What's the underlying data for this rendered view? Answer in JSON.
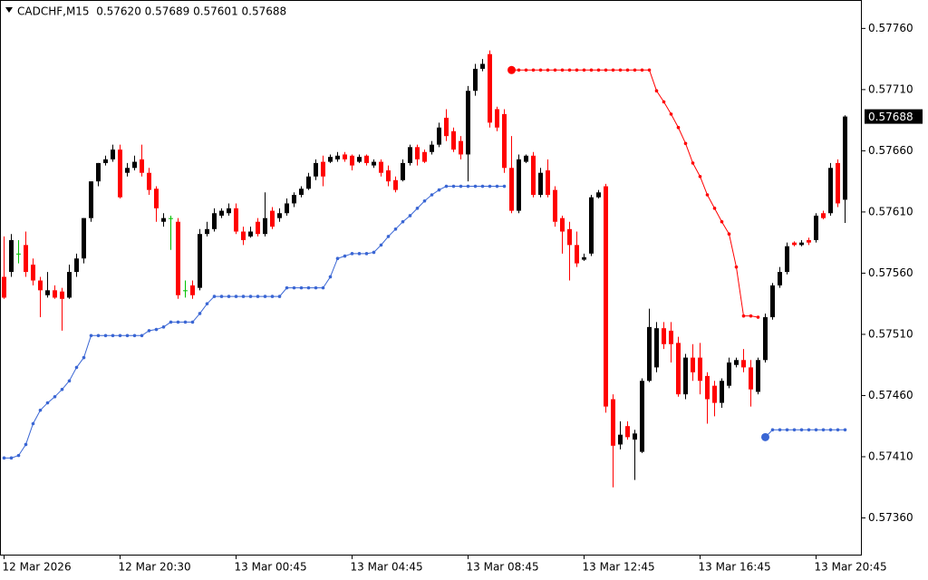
{
  "chart_data": {
    "type": "candlestick",
    "title": "CADCHF,M15  0.57620 0.57689 0.57601 0.57688",
    "categories": [
      "12 Mar 2026",
      null,
      null,
      null,
      null,
      null,
      null,
      null,
      null,
      null,
      null,
      null,
      null,
      null,
      null,
      null,
      "12 Mar 20:30",
      null,
      null,
      null,
      null,
      null,
      null,
      null,
      null,
      null,
      null,
      null,
      null,
      null,
      null,
      null,
      "13 Mar 00:45",
      null,
      null,
      null,
      null,
      null,
      null,
      null,
      null,
      null,
      null,
      null,
      null,
      null,
      null,
      null,
      "13 Mar 04:45",
      null,
      null,
      null,
      null,
      null,
      null,
      null,
      null,
      null,
      null,
      null,
      null,
      null,
      null,
      null,
      "13 Mar 08:45",
      null,
      null,
      null,
      null,
      null,
      null,
      null,
      null,
      null,
      null,
      null,
      null,
      null,
      null,
      null,
      "13 Mar 12:45",
      null,
      null,
      null,
      null,
      null,
      null,
      null,
      null,
      null,
      null,
      null,
      null,
      null,
      null,
      null,
      "13 Mar 16:45",
      null,
      null,
      null,
      null,
      null,
      null,
      null,
      null,
      null,
      null,
      null,
      null,
      null,
      null,
      null,
      "13 Mar 20:45",
      null,
      null,
      null,
      null
    ],
    "ohlc": [
      [
        0.57557,
        0.5759,
        0.57539,
        0.5754
      ],
      [
        0.57561,
        0.57592,
        0.57557,
        0.57587
      ],
      [
        0.57576,
        0.57587,
        0.57568,
        0.57576
      ],
      [
        0.57583,
        0.57594,
        0.57557,
        0.57561
      ],
      [
        0.57567,
        0.57572,
        0.5755,
        0.57554
      ],
      [
        0.57554,
        0.57557,
        0.57524,
        0.57546
      ],
      [
        0.57542,
        0.57561,
        0.5754,
        0.57546
      ],
      [
        0.57546,
        0.5755,
        0.57539,
        0.5754
      ],
      [
        0.57545,
        0.57548,
        0.57513,
        0.57539
      ],
      [
        0.5754,
        0.57567,
        0.57539,
        0.57561
      ],
      [
        0.57561,
        0.57576,
        0.57557,
        0.57572
      ],
      [
        0.57572,
        0.57605,
        0.57568,
        0.57605
      ],
      [
        0.57605,
        0.57635,
        0.57602,
        0.57635
      ],
      [
        0.57635,
        0.5765,
        0.57631,
        0.5765
      ],
      [
        0.5765,
        0.57656,
        0.57648,
        0.57653
      ],
      [
        0.57653,
        0.57665,
        0.57651,
        0.57661
      ],
      [
        0.57661,
        0.57665,
        0.57621,
        0.57622
      ],
      [
        0.57642,
        0.5765,
        0.57639,
        0.57646
      ],
      [
        0.57646,
        0.57656,
        0.57644,
        0.57651
      ],
      [
        0.57653,
        0.57665,
        0.57639,
        0.57642
      ],
      [
        0.57642,
        0.57646,
        0.57624,
        0.57628
      ],
      [
        0.57629,
        0.57631,
        0.57602,
        0.57613
      ],
      [
        0.57602,
        0.57609,
        0.57598,
        0.57605
      ],
      [
        0.57605,
        0.57607,
        0.57579,
        0.57605
      ],
      [
        0.57602,
        0.57605,
        0.57539,
        0.57542
      ],
      [
        0.57546,
        0.57554,
        0.5754,
        0.57546
      ],
      [
        0.5755,
        0.57554,
        0.57539,
        0.57542
      ],
      [
        0.57548,
        0.57596,
        0.57546,
        0.57592
      ],
      [
        0.57592,
        0.57602,
        0.5759,
        0.57596
      ],
      [
        0.57596,
        0.57613,
        0.57594,
        0.57609
      ],
      [
        0.57607,
        0.57613,
        0.57605,
        0.57611
      ],
      [
        0.57609,
        0.57617,
        0.57607,
        0.57613
      ],
      [
        0.57613,
        0.57617,
        0.57592,
        0.57594
      ],
      [
        0.57594,
        0.57598,
        0.57583,
        0.57587
      ],
      [
        0.5759,
        0.57598,
        0.57589,
        0.57594
      ],
      [
        0.57602,
        0.57605,
        0.5759,
        0.57592
      ],
      [
        0.57592,
        0.57626,
        0.5759,
        0.57605
      ],
      [
        0.57611,
        0.57614,
        0.57596,
        0.57598
      ],
      [
        0.57605,
        0.57613,
        0.57602,
        0.57609
      ],
      [
        0.57609,
        0.57621,
        0.57607,
        0.57617
      ],
      [
        0.57617,
        0.57626,
        0.57614,
        0.57624
      ],
      [
        0.57624,
        0.57631,
        0.57622,
        0.57629
      ],
      [
        0.57629,
        0.57642,
        0.57628,
        0.57639
      ],
      [
        0.57639,
        0.57653,
        0.57636,
        0.5765
      ],
      [
        0.57651,
        0.57656,
        0.57631,
        0.57639
      ],
      [
        0.57651,
        0.57657,
        0.5765,
        0.57655
      ],
      [
        0.57653,
        0.57659,
        0.57651,
        0.57656
      ],
      [
        0.57657,
        0.57659,
        0.57651,
        0.57653
      ],
      [
        0.57656,
        0.57657,
        0.57644,
        0.57648
      ],
      [
        0.57651,
        0.57657,
        0.5765,
        0.57655
      ],
      [
        0.57656,
        0.57657,
        0.57648,
        0.5765
      ],
      [
        0.57648,
        0.57653,
        0.57646,
        0.57651
      ],
      [
        0.57651,
        0.57653,
        0.57639,
        0.57642
      ],
      [
        0.57644,
        0.57648,
        0.57631,
        0.57635
      ],
      [
        0.57636,
        0.57639,
        0.57626,
        0.57628
      ],
      [
        0.57636,
        0.57653,
        0.57635,
        0.5765
      ],
      [
        0.5765,
        0.57665,
        0.57648,
        0.57663
      ],
      [
        0.57663,
        0.57665,
        0.57648,
        0.57653
      ],
      [
        0.57659,
        0.57661,
        0.5765,
        0.57651
      ],
      [
        0.57659,
        0.57668,
        0.57657,
        0.57665
      ],
      [
        0.57665,
        0.57683,
        0.57663,
        0.57679
      ],
      [
        0.57687,
        0.57694,
        0.57668,
        0.57672
      ],
      [
        0.57676,
        0.57679,
        0.57659,
        0.57661
      ],
      [
        0.57668,
        0.57672,
        0.57653,
        0.57657
      ],
      [
        0.57657,
        0.57713,
        0.57635,
        0.57709
      ],
      [
        0.57709,
        0.57731,
        0.57705,
        0.57727
      ],
      [
        0.57727,
        0.57735,
        0.57725,
        0.57731
      ],
      [
        0.57739,
        0.57742,
        0.57679,
        0.57683
      ],
      [
        0.57694,
        0.57696,
        0.57676,
        0.57679
      ],
      [
        0.5769,
        0.57694,
        0.57642,
        0.57646
      ],
      [
        0.57646,
        0.57672,
        0.57609,
        0.57611
      ],
      [
        0.57611,
        0.57657,
        0.57609,
        0.57653
      ],
      [
        0.57651,
        0.57657,
        0.5765,
        0.57656
      ],
      [
        0.57656,
        0.57659,
        0.57622,
        0.57624
      ],
      [
        0.57624,
        0.57646,
        0.57622,
        0.57642
      ],
      [
        0.57644,
        0.57653,
        0.57622,
        0.57624
      ],
      [
        0.57628,
        0.57631,
        0.57598,
        0.57602
      ],
      [
        0.57605,
        0.57607,
        0.57576,
        0.57594
      ],
      [
        0.57596,
        0.57602,
        0.57554,
        0.57583
      ],
      [
        0.57583,
        0.57594,
        0.57565,
        0.57568
      ],
      [
        0.57571,
        0.57576,
        0.5757,
        0.57573
      ],
      [
        0.57576,
        0.57624,
        0.57574,
        0.57622
      ],
      [
        0.57622,
        0.57628,
        0.57621,
        0.57626
      ],
      [
        0.57631,
        0.57633,
        0.57446,
        0.57451
      ],
      [
        0.57457,
        0.57461,
        0.57385,
        0.57419
      ],
      [
        0.5742,
        0.57439,
        0.57416,
        0.57428
      ],
      [
        0.57435,
        0.57439,
        0.57424,
        0.57426
      ],
      [
        0.57424,
        0.57432,
        0.57391,
        0.57429
      ],
      [
        0.57414,
        0.57474,
        0.57413,
        0.57472
      ],
      [
        0.57472,
        0.57531,
        0.57471,
        0.57516
      ],
      [
        0.57483,
        0.5752,
        0.57479,
        0.57515
      ],
      [
        0.57515,
        0.5752,
        0.57498,
        0.57502
      ],
      [
        0.57513,
        0.5752,
        0.57487,
        0.57502
      ],
      [
        0.57503,
        0.57508,
        0.57459,
        0.57461
      ],
      [
        0.57461,
        0.57494,
        0.57457,
        0.57491
      ],
      [
        0.57491,
        0.57502,
        0.57472,
        0.57479
      ],
      [
        0.57491,
        0.57503,
        0.57461,
        0.57472
      ],
      [
        0.57476,
        0.57479,
        0.57437,
        0.57457
      ],
      [
        0.57468,
        0.57472,
        0.57443,
        0.57454
      ],
      [
        0.57454,
        0.57474,
        0.5745,
        0.57472
      ],
      [
        0.57468,
        0.57491,
        0.57466,
        0.57487
      ],
      [
        0.57485,
        0.57491,
        0.57483,
        0.57489
      ],
      [
        0.57489,
        0.57498,
        0.57479,
        0.57483
      ],
      [
        0.57483,
        0.57489,
        0.57451,
        0.57465
      ],
      [
        0.57463,
        0.57491,
        0.57461,
        0.57489
      ],
      [
        0.57489,
        0.57527,
        0.57487,
        0.57524
      ],
      [
        0.57524,
        0.57552,
        0.57522,
        0.5755
      ],
      [
        0.5755,
        0.57565,
        0.57548,
        0.57561
      ],
      [
        0.57561,
        0.57585,
        0.57559,
        0.57582
      ],
      [
        0.57585,
        0.57586,
        0.57582,
        0.57583
      ],
      [
        0.57583,
        0.57587,
        0.57582,
        0.57585
      ],
      [
        0.57587,
        0.57589,
        0.57583,
        0.57585
      ],
      [
        0.57587,
        0.57609,
        0.57585,
        0.57607
      ],
      [
        0.57609,
        0.57611,
        0.57604,
        0.57605
      ],
      [
        0.57609,
        0.5765,
        0.57607,
        0.57646
      ],
      [
        0.5765,
        0.57653,
        0.57614,
        0.57617
      ],
      [
        0.5762,
        0.57689,
        0.57601,
        0.57688
      ]
    ],
    "up_color": "#000000",
    "down_color": "#ff0000",
    "doji_color": "#00c000",
    "series": [
      {
        "color": "#ff0000",
        "values": [
          null,
          null,
          null,
          null,
          null,
          null,
          null,
          null,
          null,
          null,
          null,
          null,
          null,
          null,
          null,
          null,
          null,
          null,
          null,
          null,
          null,
          null,
          null,
          null,
          null,
          null,
          null,
          null,
          null,
          null,
          null,
          null,
          null,
          null,
          null,
          null,
          null,
          null,
          null,
          null,
          null,
          null,
          null,
          null,
          null,
          null,
          null,
          null,
          null,
          null,
          null,
          null,
          null,
          null,
          null,
          null,
          null,
          null,
          null,
          null,
          null,
          null,
          null,
          null,
          null,
          null,
          null,
          null,
          null,
          null,
          0.57726,
          0.57726,
          0.57726,
          0.57726,
          0.57726,
          0.57726,
          0.57726,
          0.57726,
          0.57726,
          0.57726,
          0.57726,
          0.57726,
          0.57726,
          0.57726,
          0.57726,
          0.57726,
          0.57726,
          0.57726,
          0.57726,
          0.57726,
          0.57709,
          0.577,
          0.5769,
          0.57679,
          0.57666,
          0.5765,
          0.57639,
          0.57624,
          0.57613,
          0.57602,
          0.57592,
          0.57565,
          0.57525,
          0.57525,
          0.57524,
          null,
          null,
          null,
          null,
          null,
          null,
          null,
          null,
          null,
          null,
          null,
          null
        ]
      },
      {
        "color": "#3a66d4",
        "values": [
          0.57409,
          0.57409,
          0.57411,
          0.5742,
          0.57437,
          0.57448,
          0.57454,
          0.57459,
          0.57465,
          0.57472,
          0.57483,
          0.57491,
          0.57509,
          0.57509,
          0.57509,
          0.57509,
          0.57509,
          0.57509,
          0.57509,
          0.57509,
          0.57513,
          0.57514,
          0.57516,
          0.5752,
          0.5752,
          0.5752,
          0.5752,
          0.57527,
          0.57535,
          0.57541,
          0.57541,
          0.57541,
          0.57541,
          0.57541,
          0.57541,
          0.57541,
          0.57541,
          0.57541,
          0.57541,
          0.57548,
          0.57548,
          0.57548,
          0.57548,
          0.57548,
          0.57548,
          0.57557,
          0.57572,
          0.57574,
          0.57576,
          0.57576,
          0.57576,
          0.57577,
          0.57583,
          0.5759,
          0.57596,
          0.57602,
          0.57607,
          0.57613,
          0.57619,
          0.57624,
          0.57628,
          0.57631,
          0.57631,
          0.57631,
          0.57631,
          0.57631,
          0.57631,
          0.57631,
          0.57631,
          0.57631,
          null,
          null,
          null,
          null,
          null,
          null,
          null,
          null,
          null,
          null,
          null,
          null,
          null,
          null,
          null,
          null,
          null,
          null,
          null,
          null,
          null,
          null,
          null,
          null,
          null,
          null,
          null,
          null,
          null,
          null,
          null,
          null,
          null,
          null,
          null,
          0.57426,
          0.57432,
          0.57432,
          0.57432,
          0.57432,
          0.57432,
          0.57432,
          0.57432,
          0.57432,
          0.57432,
          0.57432,
          0.57432
        ]
      }
    ],
    "current_price": {
      "value": 0.57688,
      "label": "0.57688"
    },
    "ylim": [
      0.5733,
      0.57781
    ],
    "yticks": [
      {
        "value": 0.5776,
        "label": "0.57760"
      },
      {
        "value": 0.5771,
        "label": "0.57710"
      },
      {
        "value": 0.5766,
        "label": "0.57660"
      },
      {
        "value": 0.5761,
        "label": "0.57610"
      },
      {
        "value": 0.5756,
        "label": "0.57560"
      },
      {
        "value": 0.5751,
        "label": "0.57510"
      },
      {
        "value": 0.5746,
        "label": "0.57460"
      },
      {
        "value": 0.5741,
        "label": "0.57410"
      },
      {
        "value": 0.5736,
        "label": "0.57360"
      }
    ],
    "grid": false
  }
}
